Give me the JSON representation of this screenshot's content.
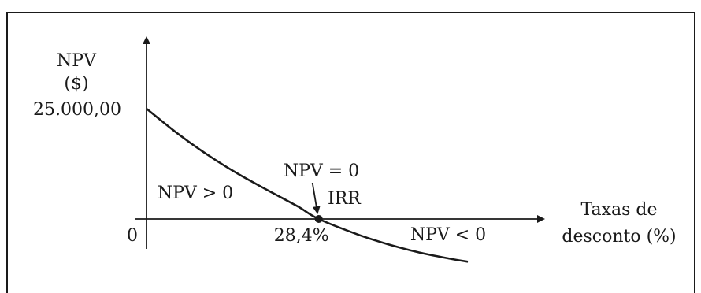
{
  "chart_data": {
    "type": "line",
    "title": "",
    "ylabel_line1": "NPV",
    "ylabel_line2": "($)",
    "xlabel_line1": "Taxas de",
    "xlabel_line2": "desconto (%)",
    "y_intercept_label": "25.000,00",
    "origin_label": "0",
    "irr_label": "28,4%",
    "annotations": {
      "npv_zero": "NPV = 0",
      "irr": "IRR",
      "npv_positive": "NPV > 0",
      "npv_negative": "NPV < 0"
    },
    "y_intercept": 25000,
    "irr": 28.4,
    "xlim": [
      0,
      65
    ],
    "ylim": [
      -10000,
      34000
    ],
    "series": [
      {
        "x": [
          0,
          5,
          10,
          15,
          20,
          25,
          28.4,
          35,
          40,
          45,
          50,
          53
        ],
        "y": [
          25000,
          19500,
          14600,
          10300,
          6500,
          2800,
          0,
          -3600,
          -5800,
          -7600,
          -9000,
          -9700
        ]
      }
    ],
    "grid": false,
    "legend": "none"
  }
}
